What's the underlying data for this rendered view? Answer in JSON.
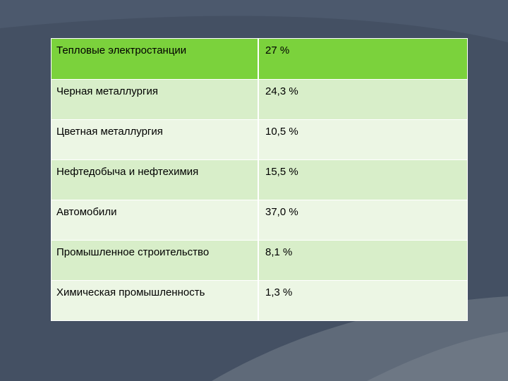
{
  "table": {
    "rows": [
      {
        "label": "Тепловые электростанции",
        "value": "27 %"
      },
      {
        "label": "Черная металлургия",
        "value": "24,3 %"
      },
      {
        "label": "Цветная металлургия",
        "value": "10,5 %"
      },
      {
        "label": "Нефтедобыча и нефтехимия",
        "value": "15,5 %"
      },
      {
        "label": "Автомобили",
        "value": "37,0 %"
      },
      {
        "label": "Промышленное строительство",
        "value": "8,1 %"
      },
      {
        "label": "Химическая промышленность",
        "value": "1,3 %"
      }
    ]
  },
  "colors": {
    "background": "#445063",
    "header_row": "#7bd23c",
    "odd_row": "#d8eec9",
    "even_row": "#ecf6e4"
  }
}
